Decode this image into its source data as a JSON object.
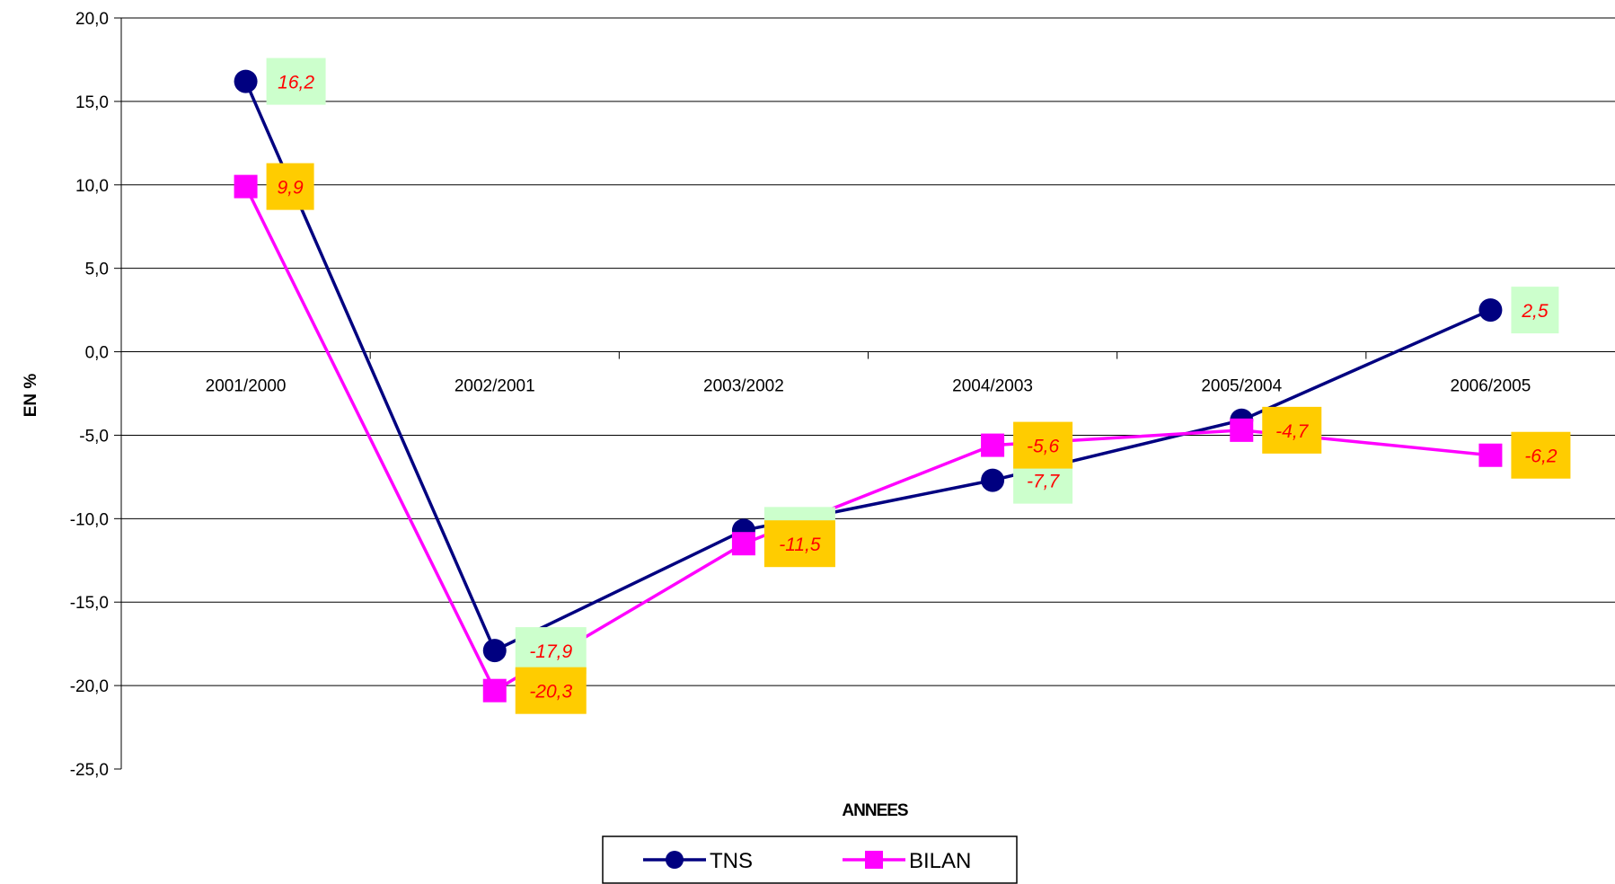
{
  "chart_data": {
    "type": "line",
    "categories": [
      "2001/2000",
      "2002/2001",
      "2003/2002",
      "2004/2003",
      "2005/2004",
      "2006/2005"
    ],
    "series": [
      {
        "name": "TNS",
        "values": [
          16.2,
          -17.9,
          -10.7,
          -7.7,
          -4.1,
          2.5
        ],
        "labels": [
          "16,2",
          "-17,9",
          "-10,7",
          "-7,7",
          "",
          "2,5"
        ],
        "color": "#000080",
        "marker": "circle",
        "label_bg": "#ccffcc"
      },
      {
        "name": "BILAN",
        "values": [
          9.9,
          -20.3,
          -11.5,
          -5.6,
          -4.7,
          -6.2
        ],
        "labels": [
          "9,9",
          "-20,3",
          "-11,5",
          "-5,6",
          "-4,7",
          "-6,2"
        ],
        "color": "#ff00ff",
        "marker": "square",
        "label_bg": "#ffcc00"
      }
    ],
    "xlabel": "ANNEES",
    "ylabel": "EN %",
    "ylim": [
      -25,
      20
    ],
    "yticks": [
      20,
      15,
      10,
      5,
      0,
      -5,
      -10,
      -15,
      -20,
      -25
    ],
    "ytick_labels": [
      "20,0",
      "15,0",
      "10,0",
      "5,0",
      "0,0",
      "-5,0",
      "-10,0",
      "-15,0",
      "-20,0",
      "-25,0"
    ],
    "grid": true,
    "legend_position": "bottom-center",
    "label_color": "#ff0000"
  }
}
